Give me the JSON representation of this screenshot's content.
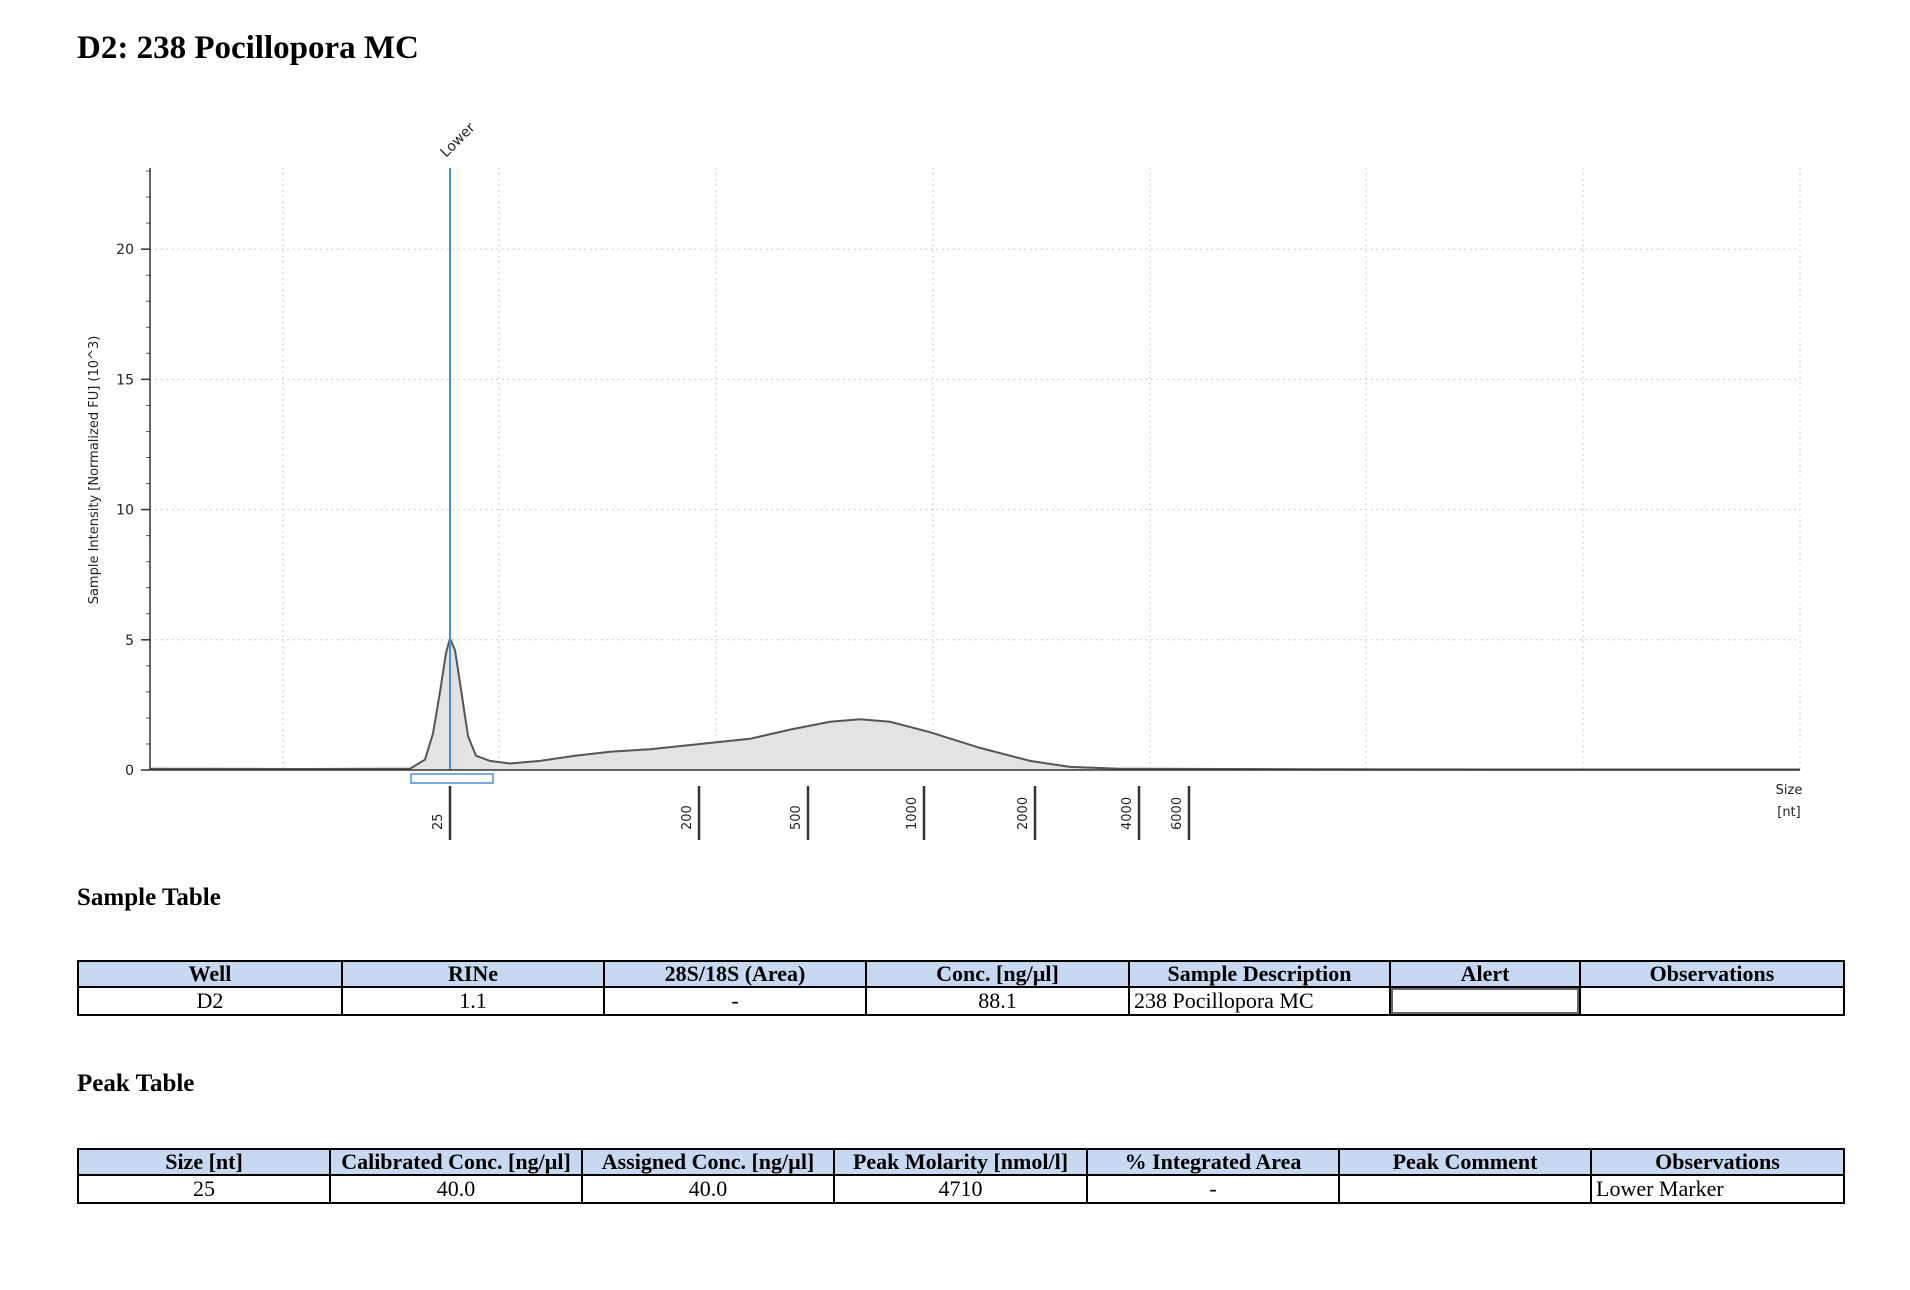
{
  "title": "D2: 238 Pocillopora MC",
  "chart_data": {
    "type": "area",
    "ylabel": "Sample Intensity [Normalized FU] (10^3)",
    "xlabel": "Size [nt]",
    "xlabel_lines": [
      "Size",
      "[nt]"
    ],
    "ylim": [
      0,
      24
    ],
    "yticks": [
      0,
      5,
      10,
      15,
      20
    ],
    "ytick_labels": [
      "0",
      "5",
      "10",
      "15",
      "20"
    ],
    "xtick_labels": [
      "25",
      "200",
      "500",
      "1000",
      "2000",
      "4000",
      "6000"
    ],
    "marker_label": "Lower",
    "grid": true,
    "trace_color": "#555555",
    "fill_color": "#e3e3e3",
    "marker_color": "#4a90d9"
  },
  "sample_table": {
    "title": "Sample Table",
    "headers": [
      "Well",
      "RINe",
      "28S/18S (Area)",
      "Conc. [ng/µl]",
      "Sample Description",
      "Alert",
      "Observations"
    ],
    "rows": [
      [
        "D2",
        "1.1",
        "-",
        "88.1",
        "238 Pocillopora MC",
        "",
        ""
      ]
    ]
  },
  "peak_table": {
    "title": "Peak Table",
    "headers": [
      "Size [nt]",
      "Calibrated Conc. [ng/µl]",
      "Assigned Conc. [ng/µl]",
      "Peak Molarity [nmol/l]",
      "% Integrated Area",
      "Peak Comment",
      "Observations"
    ],
    "rows": [
      [
        "25",
        "40.0",
        "40.0",
        "4710",
        "-",
        "",
        "Lower Marker"
      ]
    ]
  }
}
